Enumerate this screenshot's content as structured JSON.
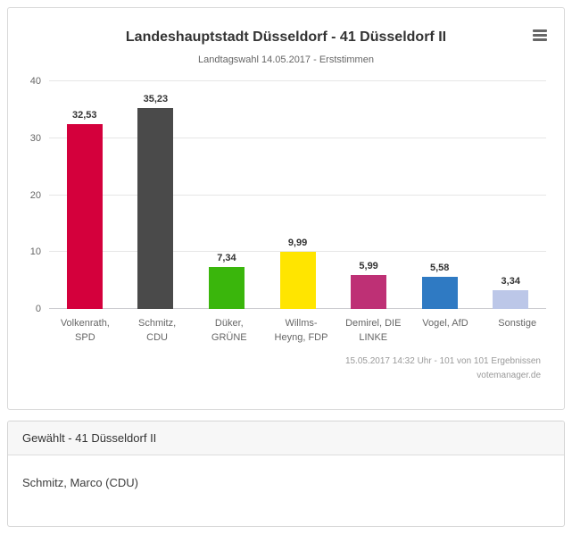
{
  "chart": {
    "title": "Landeshauptstadt Düsseldorf - 41 Düsseldorf II",
    "subtitle": "Landtagswahl 14.05.2017 - Erststimmen",
    "credits_line1": "15.05.2017 14:32 Uhr - 101 von 101 Ergebnissen",
    "credits_line2": "votemanager.de",
    "menu_icon": "hamburger-menu-icon"
  },
  "chart_data": {
    "type": "bar",
    "title": "Landeshauptstadt Düsseldorf - 41 Düsseldorf II",
    "subtitle": "Landtagswahl 14.05.2017 - Erststimmen",
    "categories": [
      "Volkenrath,\nSPD",
      "Schmitz,\nCDU",
      "Düker,\nGRÜNE",
      "Willms-\nHeyng, FDP",
      "Demirel, DIE\nLINKE",
      "Vogel, AfD",
      "Sonstige"
    ],
    "values": [
      32.53,
      35.23,
      7.34,
      9.99,
      5.99,
      5.58,
      3.34
    ],
    "value_labels": [
      "32,53",
      "35,23",
      "7,34",
      "9,99",
      "5,99",
      "5,58",
      "3,34"
    ],
    "colors": [
      "#d4003c",
      "#4a4a4a",
      "#3ab60c",
      "#ffe500",
      "#be3075",
      "#2f7ac3",
      "#bcc7e8"
    ],
    "xlabel": "",
    "ylabel": "",
    "ylim": [
      0,
      40
    ],
    "ytick_step": 10,
    "grid": true,
    "legend": "none"
  },
  "elected": {
    "header": "Gewählt - 41 Düsseldorf II",
    "name": "Schmitz, Marco (CDU)"
  }
}
